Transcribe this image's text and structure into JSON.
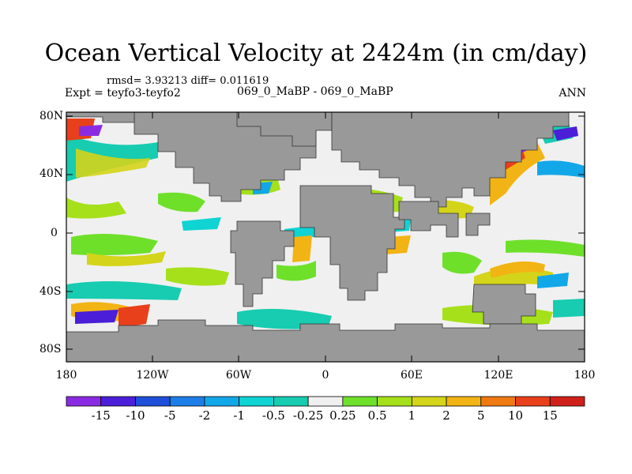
{
  "title": "Ocean Vertical Velocity at 2424m (in cm/day)",
  "stats": "rmsd= 3.93213  diff= 0.011619",
  "expt": "Expt = teyfo3-teyfo2",
  "runs": "069_0_MaBP - 069_0_MaBP",
  "season": "ANN",
  "lat_labels": [
    "80N",
    "40N",
    "0",
    "40S",
    "80S"
  ],
  "lon_labels": [
    "180",
    "120W",
    "60W",
    "0",
    "60E",
    "120E",
    "180"
  ],
  "colorbar": {
    "labels": [
      "-15",
      "-10",
      "-5",
      "-2",
      "-1",
      "-0.5",
      "-0.25",
      "0.25",
      "0.5",
      "1",
      "2",
      "5",
      "10",
      "15"
    ],
    "colors": [
      "#8a2be2",
      "#4b1ed8",
      "#1f4fd8",
      "#1e7ee8",
      "#12a7e8",
      "#10d3d3",
      "#17ccb0",
      "#f0f0f0",
      "#6ee02a",
      "#a6e01a",
      "#d4d41a",
      "#f2b414",
      "#f07a12",
      "#e8401a",
      "#d0201a"
    ]
  },
  "colors": {
    "land": "#999999",
    "ocean_neutral": "#f0f0f0"
  }
}
